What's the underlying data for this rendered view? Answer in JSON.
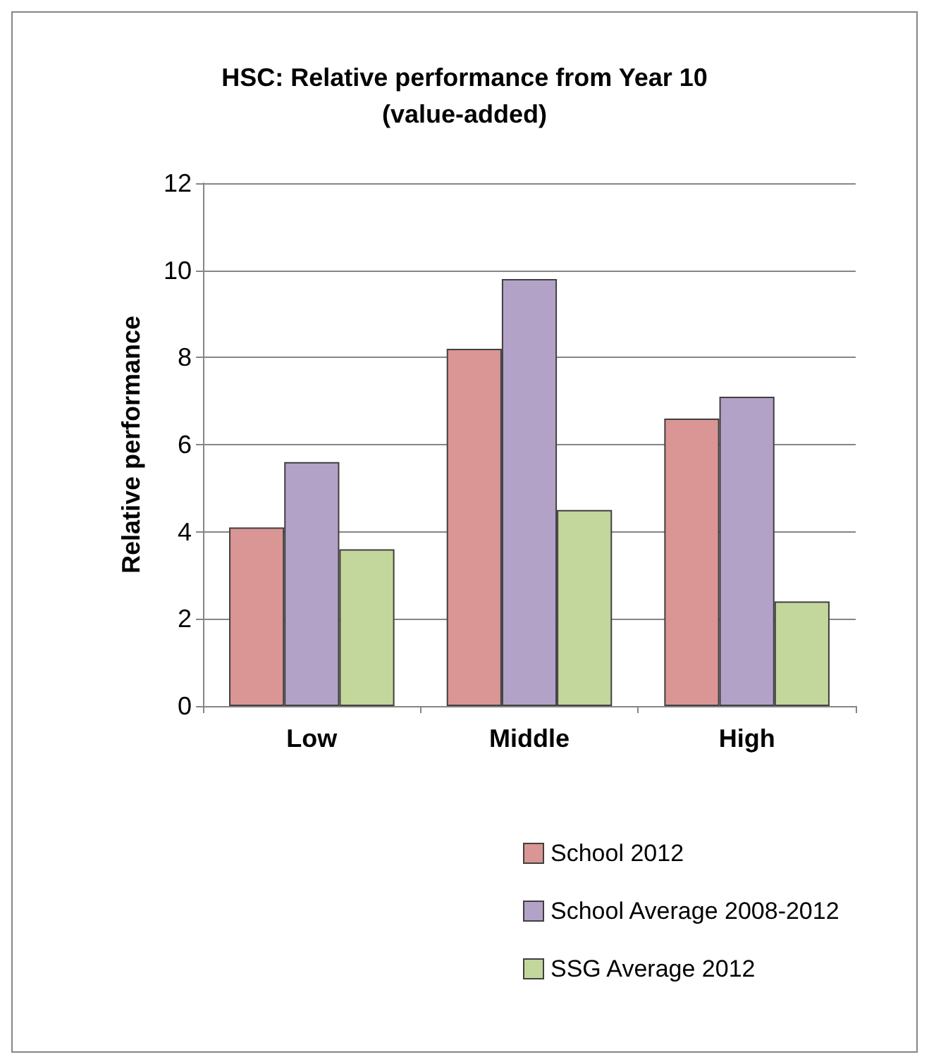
{
  "chart_data": {
    "type": "bar",
    "title": "HSC: Relative performance from Year 10\n(value-added)",
    "ylabel": "Relative performance",
    "categories": [
      "Low",
      "Middle",
      "High"
    ],
    "series": [
      {
        "name": "School 2012",
        "color": "#d99694",
        "values": [
          4.1,
          8.2,
          6.6
        ]
      },
      {
        "name": "School Average 2008-2012",
        "color": "#b3a2c7",
        "values": [
          5.6,
          9.8,
          7.1
        ]
      },
      {
        "name": "SSG Average 2012",
        "color": "#c3d69b",
        "values": [
          3.6,
          4.5,
          2.4
        ]
      }
    ],
    "ylim": [
      0,
      12
    ],
    "yticks": [
      0,
      2,
      4,
      6,
      8,
      10,
      12
    ],
    "grid": "y",
    "legend": "bottom"
  }
}
